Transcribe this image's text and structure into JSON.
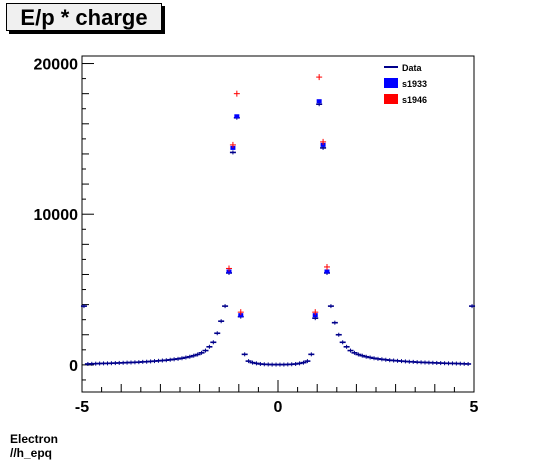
{
  "title": "E/p * charge",
  "footer": {
    "line1": "Electron",
    "line2": "//h_epq"
  },
  "colors": {
    "data": "#00008b",
    "s1933": "#0000ff",
    "s1946": "#ff0000"
  },
  "chart_data": {
    "type": "scatter",
    "title": "E/p * charge",
    "xlabel": "",
    "ylabel": "",
    "xlim": [
      -5,
      5
    ],
    "ylim": [
      -1800,
      20500
    ],
    "x_ticks": [
      -5,
      0,
      5
    ],
    "y_ticks": [
      0,
      10000,
      20000
    ],
    "grid": false,
    "legend_position": "top-right",
    "series": [
      {
        "name": "Data",
        "style": "line-errorbar",
        "x": [
          -4.95,
          -4.85,
          -4.75,
          -4.65,
          -4.55,
          -4.45,
          -4.35,
          -4.25,
          -4.15,
          -4.05,
          -3.95,
          -3.85,
          -3.75,
          -3.65,
          -3.55,
          -3.45,
          -3.35,
          -3.25,
          -3.15,
          -3.05,
          -2.95,
          -2.85,
          -2.75,
          -2.65,
          -2.55,
          -2.45,
          -2.35,
          -2.25,
          -2.15,
          -2.05,
          -1.95,
          -1.85,
          -1.75,
          -1.65,
          -1.55,
          -1.45,
          -1.35,
          -1.25,
          -1.15,
          -1.05,
          -0.95,
          -0.85,
          -0.75,
          -0.65,
          -0.55,
          -0.45,
          -0.35,
          -0.25,
          -0.15,
          -0.05,
          0.05,
          0.15,
          0.25,
          0.35,
          0.45,
          0.55,
          0.65,
          0.75,
          0.85,
          0.95,
          1.05,
          1.15,
          1.25,
          1.35,
          1.45,
          1.55,
          1.65,
          1.75,
          1.85,
          1.95,
          2.05,
          2.15,
          2.25,
          2.35,
          2.45,
          2.55,
          2.65,
          2.75,
          2.85,
          2.95,
          3.05,
          3.15,
          3.25,
          3.35,
          3.45,
          3.55,
          3.65,
          3.75,
          3.85,
          3.95,
          4.05,
          4.15,
          4.25,
          4.35,
          4.45,
          4.55,
          4.65,
          4.75,
          4.85,
          4.95
        ],
        "values": [
          3900,
          60,
          70,
          80,
          90,
          100,
          100,
          110,
          120,
          130,
          140,
          150,
          160,
          170,
          180,
          200,
          210,
          230,
          250,
          270,
          290,
          310,
          340,
          370,
          400,
          440,
          490,
          540,
          610,
          690,
          800,
          950,
          1200,
          1500,
          2100,
          2900,
          3900,
          6100,
          14100,
          16400,
          3200,
          700,
          250,
          150,
          100,
          60,
          40,
          30,
          20,
          20,
          20,
          20,
          30,
          40,
          60,
          100,
          150,
          250,
          700,
          3100,
          17300,
          14400,
          6100,
          3900,
          2800,
          2000,
          1500,
          1200,
          950,
          800,
          690,
          610,
          540,
          490,
          440,
          400,
          370,
          340,
          310,
          290,
          270,
          250,
          230,
          210,
          200,
          180,
          170,
          160,
          150,
          140,
          130,
          120,
          110,
          100,
          100,
          90,
          80,
          70,
          60,
          3900
        ]
      },
      {
        "name": "s1933",
        "style": "marker-blue",
        "x": [
          -1.25,
          -1.15,
          -1.05,
          -0.95,
          0.95,
          1.05,
          1.15,
          1.25
        ],
        "values": [
          6200,
          14400,
          16500,
          3300,
          3300,
          17500,
          14600,
          6200
        ]
      },
      {
        "name": "s1946",
        "style": "marker-red",
        "x": [
          -1.25,
          -1.15,
          -1.05,
          -0.95,
          0.95,
          1.05,
          1.15,
          1.25
        ],
        "values": [
          6400,
          14600,
          18000,
          3500,
          3500,
          19100,
          14800,
          6500
        ]
      }
    ],
    "legend": [
      "Data",
      "s1933",
      "s1946"
    ]
  }
}
